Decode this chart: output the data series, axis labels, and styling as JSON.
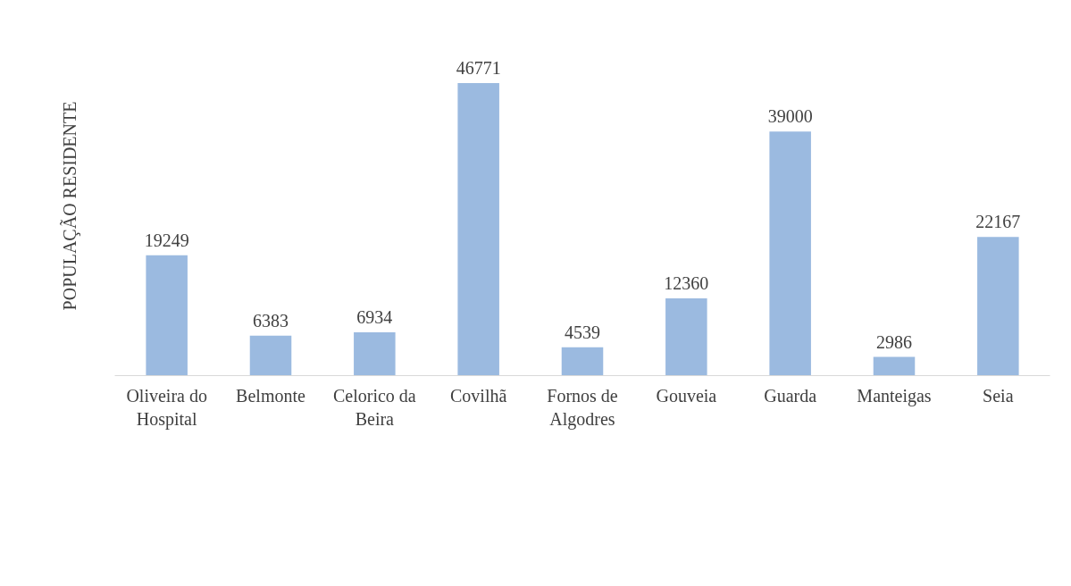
{
  "chart_data": {
    "type": "bar",
    "ylabel": "POPULAÇÃO RESIDENTE",
    "categories": [
      "Oliveira do Hospital",
      "Belmonte",
      "Celorico da Beira",
      "Covilhã",
      "Fornos de Algodres",
      "Gouveia",
      "Guarda",
      "Manteigas",
      "Seia"
    ],
    "values": [
      19249,
      6383,
      6934,
      46771,
      4539,
      12360,
      39000,
      2986,
      22167
    ],
    "color": "#9bbae0",
    "data_labels": true,
    "tick_labels": "x"
  }
}
